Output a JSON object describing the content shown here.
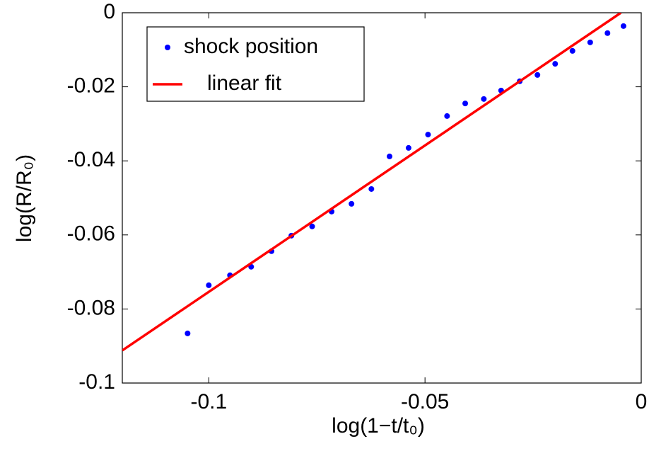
{
  "chart_data": {
    "type": "scatter",
    "xlabel": "log(1−t/t₀)",
    "ylabel": "log(R/R₀)",
    "xlim": [
      -0.12,
      0
    ],
    "ylim": [
      -0.1,
      0
    ],
    "xticks": [
      -0.1,
      -0.05,
      0
    ],
    "yticks": [
      -0.1,
      -0.08,
      -0.06,
      -0.04,
      -0.02,
      0
    ],
    "grid": false,
    "legend": "upper left",
    "series": [
      {
        "name": "shock position",
        "type": "scatter",
        "color": "#0000ff",
        "x": [
          -0.1049,
          -0.1,
          -0.0951,
          -0.0902,
          -0.0855,
          -0.0809,
          -0.0761,
          -0.0716,
          -0.067,
          -0.0624,
          -0.0582,
          -0.0538,
          -0.0493,
          -0.0449,
          -0.0407,
          -0.0364,
          -0.0324,
          -0.0281,
          -0.024,
          -0.0199,
          -0.0159,
          -0.0118,
          -0.0078,
          -0.0041
        ],
        "values": [
          -0.0866,
          -0.0736,
          -0.0709,
          -0.0686,
          -0.0644,
          -0.0602,
          -0.0577,
          -0.0537,
          -0.0516,
          -0.0476,
          -0.0388,
          -0.0365,
          -0.0329,
          -0.0279,
          -0.0245,
          -0.0233,
          -0.021,
          -0.0185,
          -0.0168,
          -0.0138,
          -0.0103,
          -0.008,
          -0.0055,
          -0.0036
        ]
      },
      {
        "name": "linear fit",
        "type": "line",
        "color": "#ff0000",
        "x": [
          -0.12,
          -0.0047
        ],
        "values": [
          -0.0912,
          0
        ]
      }
    ]
  }
}
